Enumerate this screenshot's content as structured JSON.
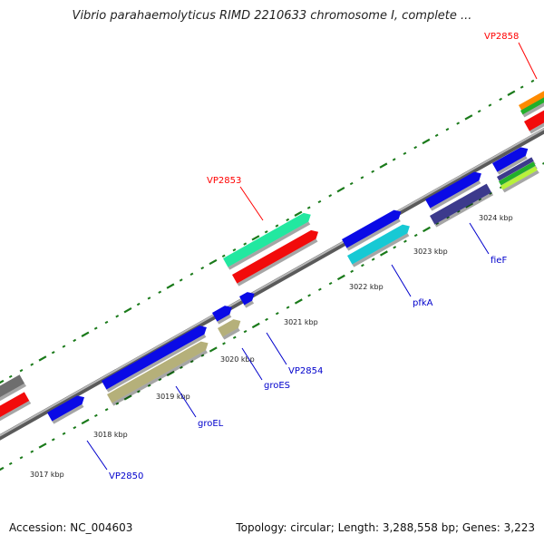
{
  "title": "Vibrio parahaemolyticus RIMD 2210633 chromosome I, complete ...",
  "footer": {
    "accession_label": "Accession:",
    "accession": "NC_004603",
    "topology_label": "Topology:",
    "topology": "circular",
    "length_label": "Length:",
    "length": "3,288,558 bp",
    "genes_label": "Genes:",
    "genes": "3,223"
  },
  "ticks": [
    {
      "label": "3017 kbp"
    },
    {
      "label": "3018 kbp"
    },
    {
      "label": "3019 kbp"
    },
    {
      "label": "3020 kbp"
    },
    {
      "label": "3021 kbp"
    },
    {
      "label": "3022 kbp"
    },
    {
      "label": "3023 kbp"
    },
    {
      "label": "3024 kbp"
    }
  ],
  "gene_labels": [
    {
      "text": "VP2858",
      "color": "#ff0000"
    },
    {
      "text": "VP2853",
      "color": "#ff0000"
    },
    {
      "text": "VP2854",
      "color": "#0000cc"
    },
    {
      "text": "groES",
      "color": "#0000cc"
    },
    {
      "text": "groEL",
      "color": "#0000cc"
    },
    {
      "text": "VP2850",
      "color": "#0000cc"
    },
    {
      "text": "pfkA",
      "color": "#0000cc"
    },
    {
      "text": "fieF",
      "color": "#0000cc"
    }
  ],
  "colors": {
    "backbone": "#8c8c8c",
    "tick": "#1a7a1a",
    "blue": "#0a0ae6",
    "khaki": "#b5b07a",
    "red": "#f20b0b",
    "mint": "#22e8a0",
    "cyan": "#17c9d4",
    "slate": "#3c3a8c",
    "gray": "#6e6e6e",
    "orange": "#ff8a00",
    "green": "#22b02a",
    "lime": "#b8f23a"
  }
}
